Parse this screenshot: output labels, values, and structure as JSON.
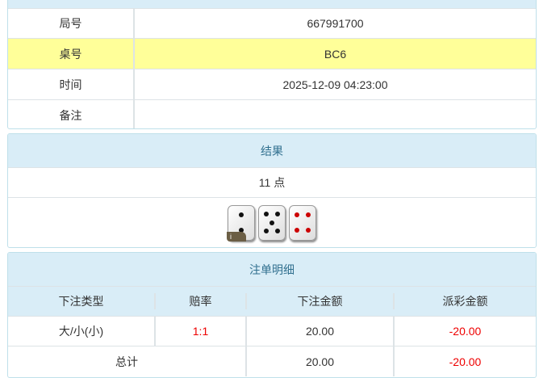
{
  "info": {
    "rows": [
      {
        "label": "局号",
        "value": "667991700",
        "highlight": false
      },
      {
        "label": "桌号",
        "value": "BC6",
        "highlight": true
      },
      {
        "label": "时间",
        "value": "2025-12-09 04:23:00",
        "highlight": false
      },
      {
        "label": "备注",
        "value": "",
        "highlight": false
      }
    ]
  },
  "result": {
    "title": "结果",
    "points": "11 点",
    "dice": [
      2,
      5,
      4
    ],
    "badge": "i"
  },
  "bets": {
    "title": "注单明细",
    "headers": [
      "下注类型",
      "赔率",
      "下注金额",
      "派彩金额"
    ],
    "rows": [
      {
        "type": "大/小(小)",
        "odds": "1:1",
        "amount": "20.00",
        "payout": "-20.00"
      }
    ],
    "total": {
      "label": "总计",
      "amount": "20.00",
      "payout": "-20.00"
    }
  },
  "colors": {
    "header_bg": "#d9edf7",
    "highlight": "#ffff99",
    "negative": "#e00000"
  }
}
